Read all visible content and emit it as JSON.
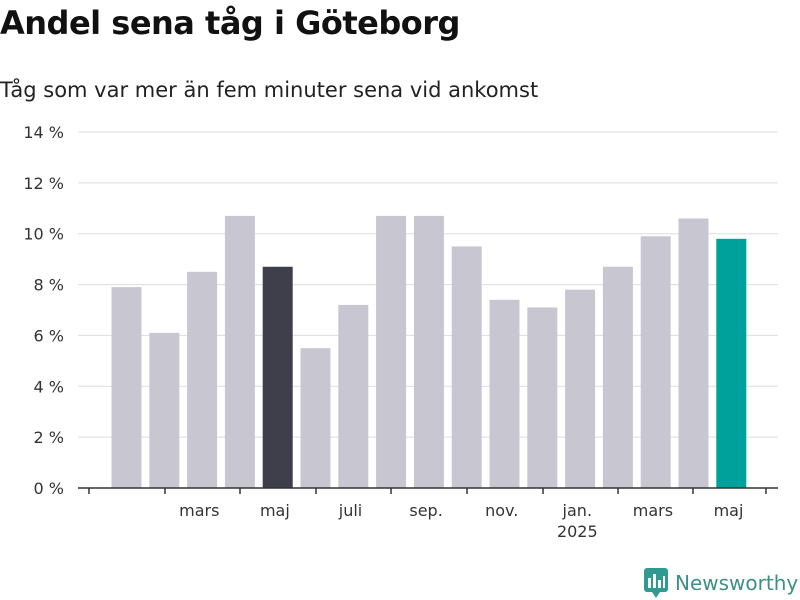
{
  "title": "Andel sena tåg i Göteborg",
  "subtitle": "Tåg som var mer än fem minuter sena vid ankomst",
  "brand": {
    "name": "Newsworthy",
    "icon": "newsworthy-logo-icon",
    "color": "#2f9a8f"
  },
  "colors": {
    "default_bar": "#c8c7d1",
    "highlight_bar": "#3f3e4b",
    "latest_bar": "#00a19a",
    "grid": "#dddddd",
    "axis": "#333333"
  },
  "chart_data": {
    "type": "bar",
    "ylim": [
      0,
      14
    ],
    "y_ticks": [
      0,
      2,
      4,
      6,
      8,
      10,
      12,
      14
    ],
    "y_tick_labels": [
      "0 %",
      "2 %",
      "4 %",
      "6 %",
      "8 %",
      "10 %",
      "12 %",
      "14 %"
    ],
    "grid": true,
    "x_tick_labels": [
      {
        "label": "mars",
        "index": 1
      },
      {
        "label": "maj",
        "index": 3
      },
      {
        "label": "juli",
        "index": 5
      },
      {
        "label": "sep.",
        "index": 7
      },
      {
        "label": "nov.",
        "index": 9
      },
      {
        "label": "jan.",
        "index": 11,
        "sublabel": "2025"
      },
      {
        "label": "mars",
        "index": 13
      },
      {
        "label": "maj",
        "index": 15
      }
    ],
    "categories": [
      "2024-02",
      "2024-03",
      "2024-04",
      "2024-05",
      "2024-06",
      "2024-07",
      "2024-08",
      "2024-09",
      "2024-10",
      "2024-11",
      "2024-12",
      "2025-01",
      "2025-02",
      "2025-03",
      "2025-04",
      "2025-05",
      "2025-06"
    ],
    "values": [
      7.9,
      6.1,
      8.5,
      10.7,
      8.7,
      5.5,
      7.2,
      10.7,
      10.7,
      9.5,
      7.4,
      7.1,
      7.8,
      8.7,
      9.9,
      10.6,
      9.8
    ],
    "highlight": {
      "index": 4,
      "color": "#3f3e4b"
    },
    "latest": {
      "index": 16,
      "color": "#00a19a"
    }
  }
}
